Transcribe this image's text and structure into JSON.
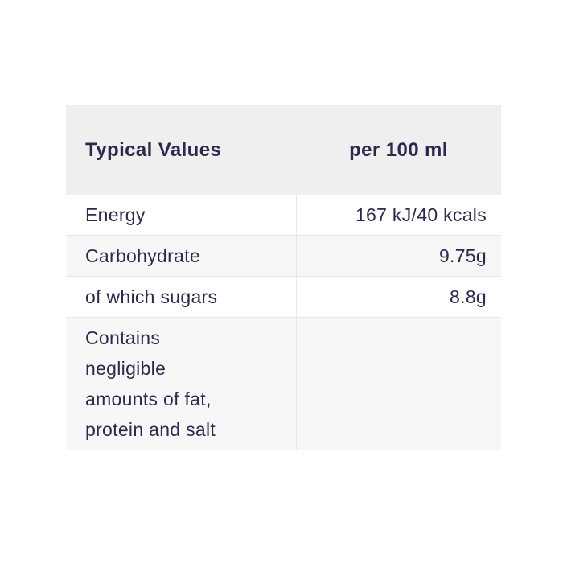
{
  "nutrition_table": {
    "header": {
      "label": "Typical Values",
      "amount_column": "per 100 ml"
    },
    "rows": [
      {
        "label": "Energy",
        "value": "167 kJ/40 kcals"
      },
      {
        "label": "Carbohydrate",
        "value": "9.75g"
      },
      {
        "label": "of which sugars",
        "value": "8.8g"
      },
      {
        "label_lines": [
          "Contains",
          "negligible",
          "amounts of fat,",
          "protein and salt"
        ],
        "value": ""
      }
    ],
    "colors": {
      "header_background": "#efefef",
      "stripe_background": "#f7f7f7",
      "row_background": "#ffffff",
      "border": "#e7e7e7",
      "text": "#2b2a4c",
      "page_background": "#ffffff"
    }
  }
}
